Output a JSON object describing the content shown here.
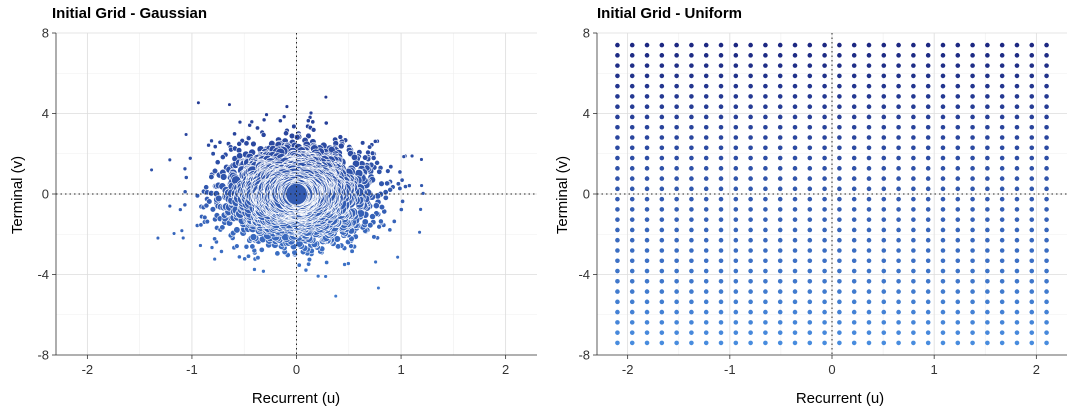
{
  "chart_data": [
    {
      "type": "scatter",
      "title": "Initial Grid - Gaussian",
      "xlabel": "Recurrent (u)",
      "ylabel": "Terminal (v)",
      "xlim": [
        -2.3,
        2.3
      ],
      "ylim": [
        -8,
        8
      ],
      "xticks": [
        -2,
        -1,
        0,
        1,
        2
      ],
      "yticks": [
        -8,
        -4,
        0,
        4,
        8
      ],
      "x_distribution": {
        "mean": 0,
        "sd": 0.4
      },
      "y_distribution": {
        "mean": 0,
        "sd": 1.4
      },
      "point_count": 1500,
      "size_by": "density",
      "color_scale": [
        "#4a90e2",
        "#1a237e"
      ],
      "grid": true,
      "reference_lines": {
        "x": 0,
        "y": 0
      }
    },
    {
      "type": "scatter",
      "title": "Initial Grid - Uniform",
      "xlabel": "Recurrent (u)",
      "ylabel": "Terminal (v)",
      "xlim": [
        -2.3,
        2.3
      ],
      "ylim": [
        -8,
        8
      ],
      "xticks": [
        -2,
        -1,
        0,
        1,
        2
      ],
      "yticks": [
        -8,
        -4,
        0,
        4,
        8
      ],
      "x": {
        "start": -2.1,
        "end": 2.1,
        "count": 30
      },
      "y": {
        "start": -7.4,
        "end": 7.4,
        "count": 30
      },
      "color_scale": [
        "#4a90e2",
        "#1a237e"
      ],
      "grid": true,
      "reference_lines": {
        "x": 0,
        "y": 0
      }
    }
  ]
}
